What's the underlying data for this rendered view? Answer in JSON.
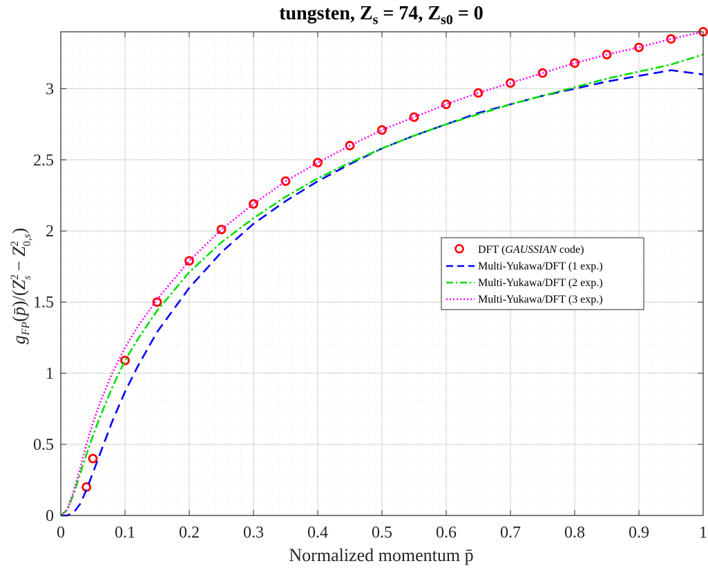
{
  "chart_data": {
    "type": "line",
    "title_parts": {
      "prefix": "tungsten, Z",
      "sub1": "s",
      "middle": " = 74, Z",
      "sub2": "s0",
      "suffix": " = 0"
    },
    "xlabel": "Normalized momentum p̄",
    "ylabel": "g_FP(p̄)/(Z_s² − Z_0,s²)",
    "xlim": [
      0,
      1
    ],
    "ylim": [
      0,
      3.4
    ],
    "xticks": [
      0,
      0.1,
      0.2,
      0.3,
      0.4,
      0.5,
      0.6,
      0.7,
      0.8,
      0.9,
      1
    ],
    "xtick_labels": [
      "0",
      "0.1",
      "0.2",
      "0.3",
      "0.4",
      "0.5",
      "0.6",
      "0.7",
      "0.8",
      "0.9",
      "1"
    ],
    "yticks": [
      0,
      0.5,
      1,
      1.5,
      2,
      2.5,
      3
    ],
    "ytick_labels": [
      "0",
      "0.5",
      "1",
      "1.5",
      "2",
      "2.5",
      "3"
    ],
    "grid": true,
    "minor_grid": true,
    "legend_position": "center-right",
    "series": [
      {
        "name": "DFT (GAUSSIAN code)",
        "legend_parts": [
          "DFT (",
          "GAUSSIAN",
          " code)"
        ],
        "style": "markers",
        "color": "#ff0000",
        "x": [
          0.04,
          0.05,
          0.1,
          0.15,
          0.2,
          0.25,
          0.3,
          0.35,
          0.4,
          0.45,
          0.5,
          0.55,
          0.6,
          0.65,
          0.7,
          0.75,
          0.8,
          0.85,
          0.9,
          0.95,
          1.0
        ],
        "y": [
          0.2,
          0.4,
          1.09,
          1.5,
          1.79,
          2.01,
          2.19,
          2.35,
          2.48,
          2.6,
          2.71,
          2.8,
          2.89,
          2.97,
          3.04,
          3.11,
          3.18,
          3.24,
          3.29,
          3.35,
          3.4
        ]
      },
      {
        "name": "Multi-Yukawa/DFT (1 exp.)",
        "style": "dashed",
        "color": "#0000ff",
        "x": [
          0.0,
          0.01,
          0.02,
          0.03,
          0.04,
          0.05,
          0.06,
          0.08,
          0.1,
          0.12,
          0.15,
          0.2,
          0.25,
          0.3,
          0.35,
          0.4,
          0.45,
          0.5,
          0.55,
          0.6,
          0.65,
          0.7,
          0.75,
          0.8,
          0.85,
          0.9,
          0.95,
          1.0
        ],
        "y": [
          0.0,
          0.0,
          0.02,
          0.08,
          0.18,
          0.3,
          0.42,
          0.66,
          0.87,
          1.05,
          1.29,
          1.6,
          1.85,
          2.05,
          2.21,
          2.35,
          2.47,
          2.58,
          2.67,
          2.75,
          2.83,
          2.89,
          2.95,
          3.0,
          3.05,
          3.09,
          3.13,
          3.1
        ]
      },
      {
        "name": "Multi-Yukawa/DFT (2 exp.)",
        "style": "dashdot",
        "color": "#00dd00",
        "x": [
          0.0,
          0.01,
          0.02,
          0.03,
          0.04,
          0.05,
          0.06,
          0.08,
          0.1,
          0.12,
          0.15,
          0.2,
          0.25,
          0.3,
          0.35,
          0.4,
          0.45,
          0.5,
          0.55,
          0.6,
          0.65,
          0.7,
          0.75,
          0.8,
          0.85,
          0.9,
          0.95,
          1.0
        ],
        "y": [
          0.0,
          0.04,
          0.15,
          0.29,
          0.43,
          0.56,
          0.68,
          0.9,
          1.09,
          1.24,
          1.44,
          1.71,
          1.92,
          2.09,
          2.24,
          2.37,
          2.48,
          2.58,
          2.67,
          2.75,
          2.82,
          2.89,
          2.95,
          3.01,
          3.07,
          3.12,
          3.17,
          3.24
        ]
      },
      {
        "name": "Multi-Yukawa/DFT (3 exp.)",
        "style": "dotted",
        "color": "#ff00ff",
        "x": [
          0.0,
          0.01,
          0.02,
          0.03,
          0.04,
          0.05,
          0.06,
          0.08,
          0.1,
          0.12,
          0.15,
          0.2,
          0.25,
          0.3,
          0.35,
          0.4,
          0.45,
          0.5,
          0.55,
          0.6,
          0.65,
          0.7,
          0.75,
          0.8,
          0.85,
          0.9,
          0.95,
          1.0
        ],
        "y": [
          0.0,
          0.04,
          0.17,
          0.33,
          0.5,
          0.65,
          0.78,
          1.0,
          1.18,
          1.33,
          1.52,
          1.79,
          2.01,
          2.19,
          2.35,
          2.48,
          2.6,
          2.71,
          2.8,
          2.89,
          2.97,
          3.04,
          3.11,
          3.18,
          3.24,
          3.29,
          3.35,
          3.4
        ]
      }
    ]
  }
}
